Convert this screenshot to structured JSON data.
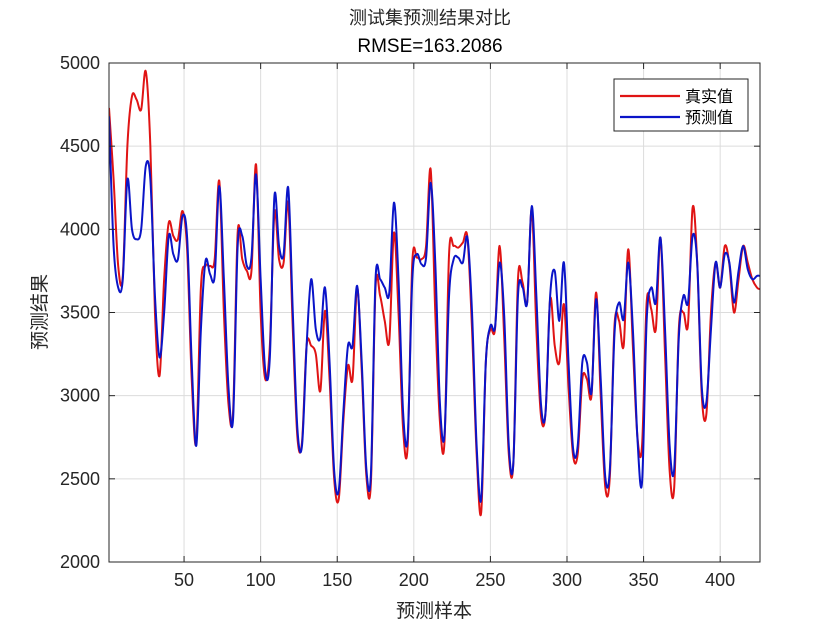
{
  "chart_data": {
    "type": "line",
    "title": "测试集预测结果对比",
    "subtitle": "RMSE=163.2086",
    "xlabel": "预测样本",
    "ylabel": "预测结果",
    "xlim": [
      1,
      426
    ],
    "ylim": [
      2000,
      5000
    ],
    "xticks": [
      50,
      100,
      150,
      200,
      250,
      300,
      350,
      400
    ],
    "yticks": [
      2000,
      2500,
      3000,
      3500,
      4000,
      4500,
      5000
    ],
    "grid": true,
    "legend_position": "top-right",
    "series": [
      {
        "name": "真实值",
        "color": "#e01414",
        "points": [
          [
            1,
            4730
          ],
          [
            4,
            4300
          ],
          [
            7,
            3780
          ],
          [
            10,
            3720
          ],
          [
            13,
            4500
          ],
          [
            16,
            4800
          ],
          [
            19,
            4780
          ],
          [
            22,
            4720
          ],
          [
            25,
            4950
          ],
          [
            28,
            4500
          ],
          [
            31,
            3500
          ],
          [
            34,
            3120
          ],
          [
            37,
            3700
          ],
          [
            40,
            4040
          ],
          [
            43,
            3960
          ],
          [
            46,
            3940
          ],
          [
            49,
            4110
          ],
          [
            52,
            3880
          ],
          [
            55,
            3100
          ],
          [
            58,
            2720
          ],
          [
            61,
            3650
          ],
          [
            64,
            3780
          ],
          [
            67,
            3780
          ],
          [
            70,
            3820
          ],
          [
            73,
            4290
          ],
          [
            76,
            3500
          ],
          [
            79,
            2950
          ],
          [
            82,
            2900
          ],
          [
            85,
            3980
          ],
          [
            88,
            3820
          ],
          [
            91,
            3750
          ],
          [
            94,
            3750
          ],
          [
            97,
            4390
          ],
          [
            100,
            3500
          ],
          [
            103,
            3100
          ],
          [
            106,
            3300
          ],
          [
            109,
            4100
          ],
          [
            112,
            3820
          ],
          [
            115,
            3800
          ],
          [
            118,
            4160
          ],
          [
            121,
            3400
          ],
          [
            124,
            2750
          ],
          [
            127,
            2720
          ],
          [
            130,
            3300
          ],
          [
            133,
            3300
          ],
          [
            136,
            3250
          ],
          [
            139,
            3030
          ],
          [
            142,
            3510
          ],
          [
            145,
            3100
          ],
          [
            148,
            2500
          ],
          [
            151,
            2380
          ],
          [
            154,
            2850
          ],
          [
            157,
            3180
          ],
          [
            160,
            3100
          ],
          [
            163,
            3650
          ],
          [
            166,
            3150
          ],
          [
            169,
            2520
          ],
          [
            172,
            2480
          ],
          [
            175,
            3650
          ],
          [
            178,
            3600
          ],
          [
            181,
            3450
          ],
          [
            184,
            3330
          ],
          [
            187,
            3980
          ],
          [
            190,
            3500
          ],
          [
            193,
            2800
          ],
          [
            196,
            2700
          ],
          [
            199,
            3800
          ],
          [
            202,
            3830
          ],
          [
            205,
            3820
          ],
          [
            208,
            3900
          ],
          [
            211,
            4360
          ],
          [
            214,
            3500
          ],
          [
            217,
            2850
          ],
          [
            220,
            2720
          ],
          [
            223,
            3850
          ],
          [
            226,
            3900
          ],
          [
            229,
            3890
          ],
          [
            232,
            3920
          ],
          [
            235,
            3950
          ],
          [
            238,
            3400
          ],
          [
            241,
            2650
          ],
          [
            244,
            2300
          ],
          [
            247,
            3200
          ],
          [
            250,
            3400
          ],
          [
            253,
            3400
          ],
          [
            256,
            3900
          ],
          [
            259,
            3350
          ],
          [
            262,
            2650
          ],
          [
            265,
            2600
          ],
          [
            268,
            3700
          ],
          [
            271,
            3680
          ],
          [
            274,
            3560
          ],
          [
            277,
            4120
          ],
          [
            280,
            3400
          ],
          [
            283,
            2880
          ],
          [
            286,
            2900
          ],
          [
            289,
            3580
          ],
          [
            292,
            3300
          ],
          [
            295,
            3200
          ],
          [
            298,
            3550
          ],
          [
            301,
            3050
          ],
          [
            304,
            2640
          ],
          [
            307,
            2650
          ],
          [
            310,
            3100
          ],
          [
            313,
            3100
          ],
          [
            316,
            3000
          ],
          [
            319,
            3620
          ],
          [
            322,
            3000
          ],
          [
            325,
            2450
          ],
          [
            328,
            2520
          ],
          [
            331,
            3420
          ],
          [
            334,
            3450
          ],
          [
            337,
            3300
          ],
          [
            340,
            3880
          ],
          [
            343,
            3300
          ],
          [
            346,
            2750
          ],
          [
            349,
            2700
          ],
          [
            352,
            3560
          ],
          [
            355,
            3520
          ],
          [
            358,
            3400
          ],
          [
            361,
            3950
          ],
          [
            364,
            3250
          ],
          [
            367,
            2550
          ],
          [
            370,
            2450
          ],
          [
            373,
            3400
          ],
          [
            376,
            3500
          ],
          [
            379,
            3430
          ],
          [
            382,
            4130
          ],
          [
            385,
            3800
          ],
          [
            388,
            3000
          ],
          [
            391,
            2890
          ],
          [
            394,
            3500
          ],
          [
            397,
            3800
          ],
          [
            400,
            3650
          ],
          [
            403,
            3900
          ],
          [
            406,
            3790
          ],
          [
            409,
            3500
          ],
          [
            412,
            3700
          ],
          [
            415,
            3900
          ],
          [
            418,
            3800
          ],
          [
            421,
            3700
          ],
          [
            424,
            3650
          ],
          [
            426,
            3640
          ]
        ]
      },
      {
        "name": "预测值",
        "color": "#0a14c8",
        "points": [
          [
            1,
            4680
          ],
          [
            4,
            3900
          ],
          [
            7,
            3650
          ],
          [
            10,
            3700
          ],
          [
            13,
            4300
          ],
          [
            16,
            4000
          ],
          [
            19,
            3940
          ],
          [
            22,
            4000
          ],
          [
            25,
            4380
          ],
          [
            28,
            4300
          ],
          [
            31,
            3600
          ],
          [
            34,
            3230
          ],
          [
            37,
            3500
          ],
          [
            40,
            3960
          ],
          [
            43,
            3850
          ],
          [
            46,
            3820
          ],
          [
            49,
            4080
          ],
          [
            52,
            3950
          ],
          [
            55,
            3200
          ],
          [
            58,
            2700
          ],
          [
            61,
            3400
          ],
          [
            64,
            3810
          ],
          [
            67,
            3730
          ],
          [
            70,
            3720
          ],
          [
            73,
            4260
          ],
          [
            76,
            3700
          ],
          [
            79,
            3050
          ],
          [
            82,
            2860
          ],
          [
            85,
            3900
          ],
          [
            88,
            3960
          ],
          [
            91,
            3780
          ],
          [
            94,
            3830
          ],
          [
            97,
            4330
          ],
          [
            100,
            3700
          ],
          [
            103,
            3150
          ],
          [
            106,
            3230
          ],
          [
            109,
            4200
          ],
          [
            112,
            3900
          ],
          [
            115,
            3850
          ],
          [
            118,
            4250
          ],
          [
            121,
            3500
          ],
          [
            124,
            2800
          ],
          [
            127,
            2700
          ],
          [
            130,
            3300
          ],
          [
            133,
            3700
          ],
          [
            136,
            3400
          ],
          [
            139,
            3350
          ],
          [
            142,
            3650
          ],
          [
            145,
            3200
          ],
          [
            148,
            2550
          ],
          [
            151,
            2430
          ],
          [
            154,
            2900
          ],
          [
            157,
            3300
          ],
          [
            160,
            3300
          ],
          [
            163,
            3660
          ],
          [
            166,
            3200
          ],
          [
            169,
            2560
          ],
          [
            172,
            2530
          ],
          [
            175,
            3700
          ],
          [
            178,
            3700
          ],
          [
            181,
            3650
          ],
          [
            184,
            3620
          ],
          [
            187,
            4160
          ],
          [
            190,
            3700
          ],
          [
            193,
            2900
          ],
          [
            196,
            2750
          ],
          [
            199,
            3700
          ],
          [
            202,
            3850
          ],
          [
            205,
            3790
          ],
          [
            208,
            3830
          ],
          [
            211,
            4280
          ],
          [
            214,
            3800
          ],
          [
            217,
            2960
          ],
          [
            220,
            2760
          ],
          [
            223,
            3600
          ],
          [
            226,
            3820
          ],
          [
            229,
            3830
          ],
          [
            232,
            3800
          ],
          [
            235,
            3950
          ],
          [
            238,
            3500
          ],
          [
            241,
            2700
          ],
          [
            244,
            2380
          ],
          [
            247,
            3200
          ],
          [
            250,
            3420
          ],
          [
            253,
            3410
          ],
          [
            256,
            3800
          ],
          [
            259,
            3480
          ],
          [
            262,
            2700
          ],
          [
            265,
            2600
          ],
          [
            268,
            3600
          ],
          [
            271,
            3650
          ],
          [
            274,
            3560
          ],
          [
            277,
            4140
          ],
          [
            280,
            3600
          ],
          [
            283,
            2950
          ],
          [
            286,
            2900
          ],
          [
            289,
            3600
          ],
          [
            292,
            3750
          ],
          [
            295,
            3450
          ],
          [
            298,
            3800
          ],
          [
            301,
            3200
          ],
          [
            304,
            2680
          ],
          [
            307,
            2700
          ],
          [
            310,
            3200
          ],
          [
            313,
            3200
          ],
          [
            316,
            3020
          ],
          [
            319,
            3580
          ],
          [
            322,
            3100
          ],
          [
            325,
            2510
          ],
          [
            328,
            2560
          ],
          [
            331,
            3370
          ],
          [
            334,
            3560
          ],
          [
            337,
            3460
          ],
          [
            340,
            3800
          ],
          [
            343,
            3400
          ],
          [
            346,
            2740
          ],
          [
            349,
            2480
          ],
          [
            352,
            3450
          ],
          [
            355,
            3650
          ],
          [
            358,
            3560
          ],
          [
            361,
            3950
          ],
          [
            364,
            3400
          ],
          [
            367,
            2700
          ],
          [
            370,
            2560
          ],
          [
            373,
            3350
          ],
          [
            376,
            3600
          ],
          [
            379,
            3560
          ],
          [
            382,
            3960
          ],
          [
            385,
            3800
          ],
          [
            388,
            3050
          ],
          [
            391,
            2960
          ],
          [
            394,
            3400
          ],
          [
            397,
            3800
          ],
          [
            400,
            3650
          ],
          [
            403,
            3850
          ],
          [
            406,
            3800
          ],
          [
            409,
            3560
          ],
          [
            412,
            3750
          ],
          [
            415,
            3900
          ],
          [
            418,
            3760
          ],
          [
            421,
            3700
          ],
          [
            424,
            3720
          ],
          [
            426,
            3720
          ]
        ]
      }
    ]
  }
}
